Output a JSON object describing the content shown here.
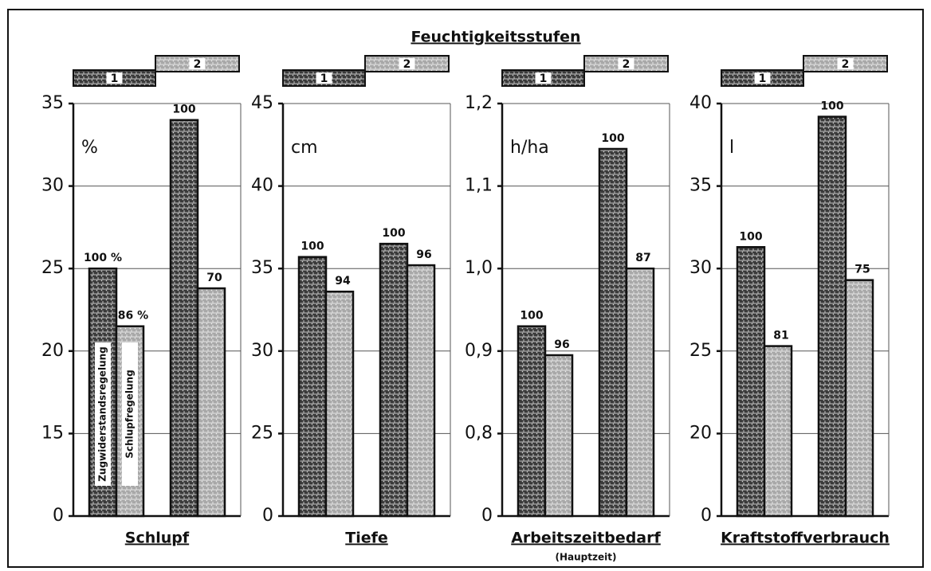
{
  "title": "Feuchtigkeitsstufen",
  "chart_data": [
    {
      "type": "bar",
      "title": "Schlupf",
      "y_label": "%",
      "categories": [
        "1",
        "2"
      ],
      "series": [
        {
          "name": "Zugwiderstandsregelung",
          "color": "#3a3a3a",
          "values": [
            25,
            34
          ],
          "annotations": [
            "100 %",
            "100"
          ]
        },
        {
          "name": "Schlupfregelung",
          "color": "#a8a8a8",
          "values": [
            21.5,
            23.8
          ],
          "annotations": [
            "86 %",
            "70"
          ]
        }
      ],
      "ylim": [
        0,
        35
      ],
      "yticks": [
        0,
        15,
        20,
        25,
        30,
        35
      ],
      "grid": true
    },
    {
      "type": "bar",
      "title": "Tiefe",
      "y_label": "cm",
      "categories": [
        "1",
        "2"
      ],
      "series": [
        {
          "color": "#3a3a3a",
          "values": [
            35.7,
            36.5
          ],
          "annotations": [
            "100",
            "100"
          ]
        },
        {
          "color": "#a8a8a8",
          "values": [
            33.6,
            35.2
          ],
          "annotations": [
            "94",
            "96"
          ]
        }
      ],
      "ylim": [
        0,
        45
      ],
      "yticks": [
        0,
        25,
        30,
        35,
        40,
        45
      ],
      "grid": true
    },
    {
      "type": "bar",
      "title": "Arbeitszeitbedarf",
      "subtitle": "(Hauptzeit)",
      "y_label": "h/ha",
      "categories": [
        "1",
        "2"
      ],
      "series": [
        {
          "color": "#3a3a3a",
          "values": [
            0.93,
            1.145
          ],
          "annotations": [
            "100",
            "100"
          ]
        },
        {
          "color": "#a8a8a8",
          "values": [
            0.895,
            1.0
          ],
          "annotations": [
            "96",
            "87"
          ]
        }
      ],
      "ylim": [
        0,
        1.2
      ],
      "yticks": [
        0,
        {
          "value": 0.8,
          "label": "0,8"
        },
        {
          "value": 0.9,
          "label": "0,9"
        },
        {
          "value": 1.0,
          "label": "1,0"
        },
        {
          "value": 1.1,
          "label": "1,1"
        },
        {
          "value": 1.2,
          "label": "1,2"
        }
      ],
      "grid": true
    },
    {
      "type": "bar",
      "title": "Kraftstoffverbrauch",
      "y_label": "l",
      "categories": [
        "1",
        "2"
      ],
      "series": [
        {
          "color": "#3a3a3a",
          "values": [
            31.3,
            39.2
          ],
          "annotations": [
            "100",
            "100"
          ]
        },
        {
          "color": "#a8a8a8",
          "values": [
            25.3,
            29.3
          ],
          "annotations": [
            "81",
            "75"
          ]
        }
      ],
      "ylim": [
        0,
        40
      ],
      "yticks": [
        0,
        20,
        25,
        30,
        35,
        40
      ],
      "grid": true
    }
  ]
}
